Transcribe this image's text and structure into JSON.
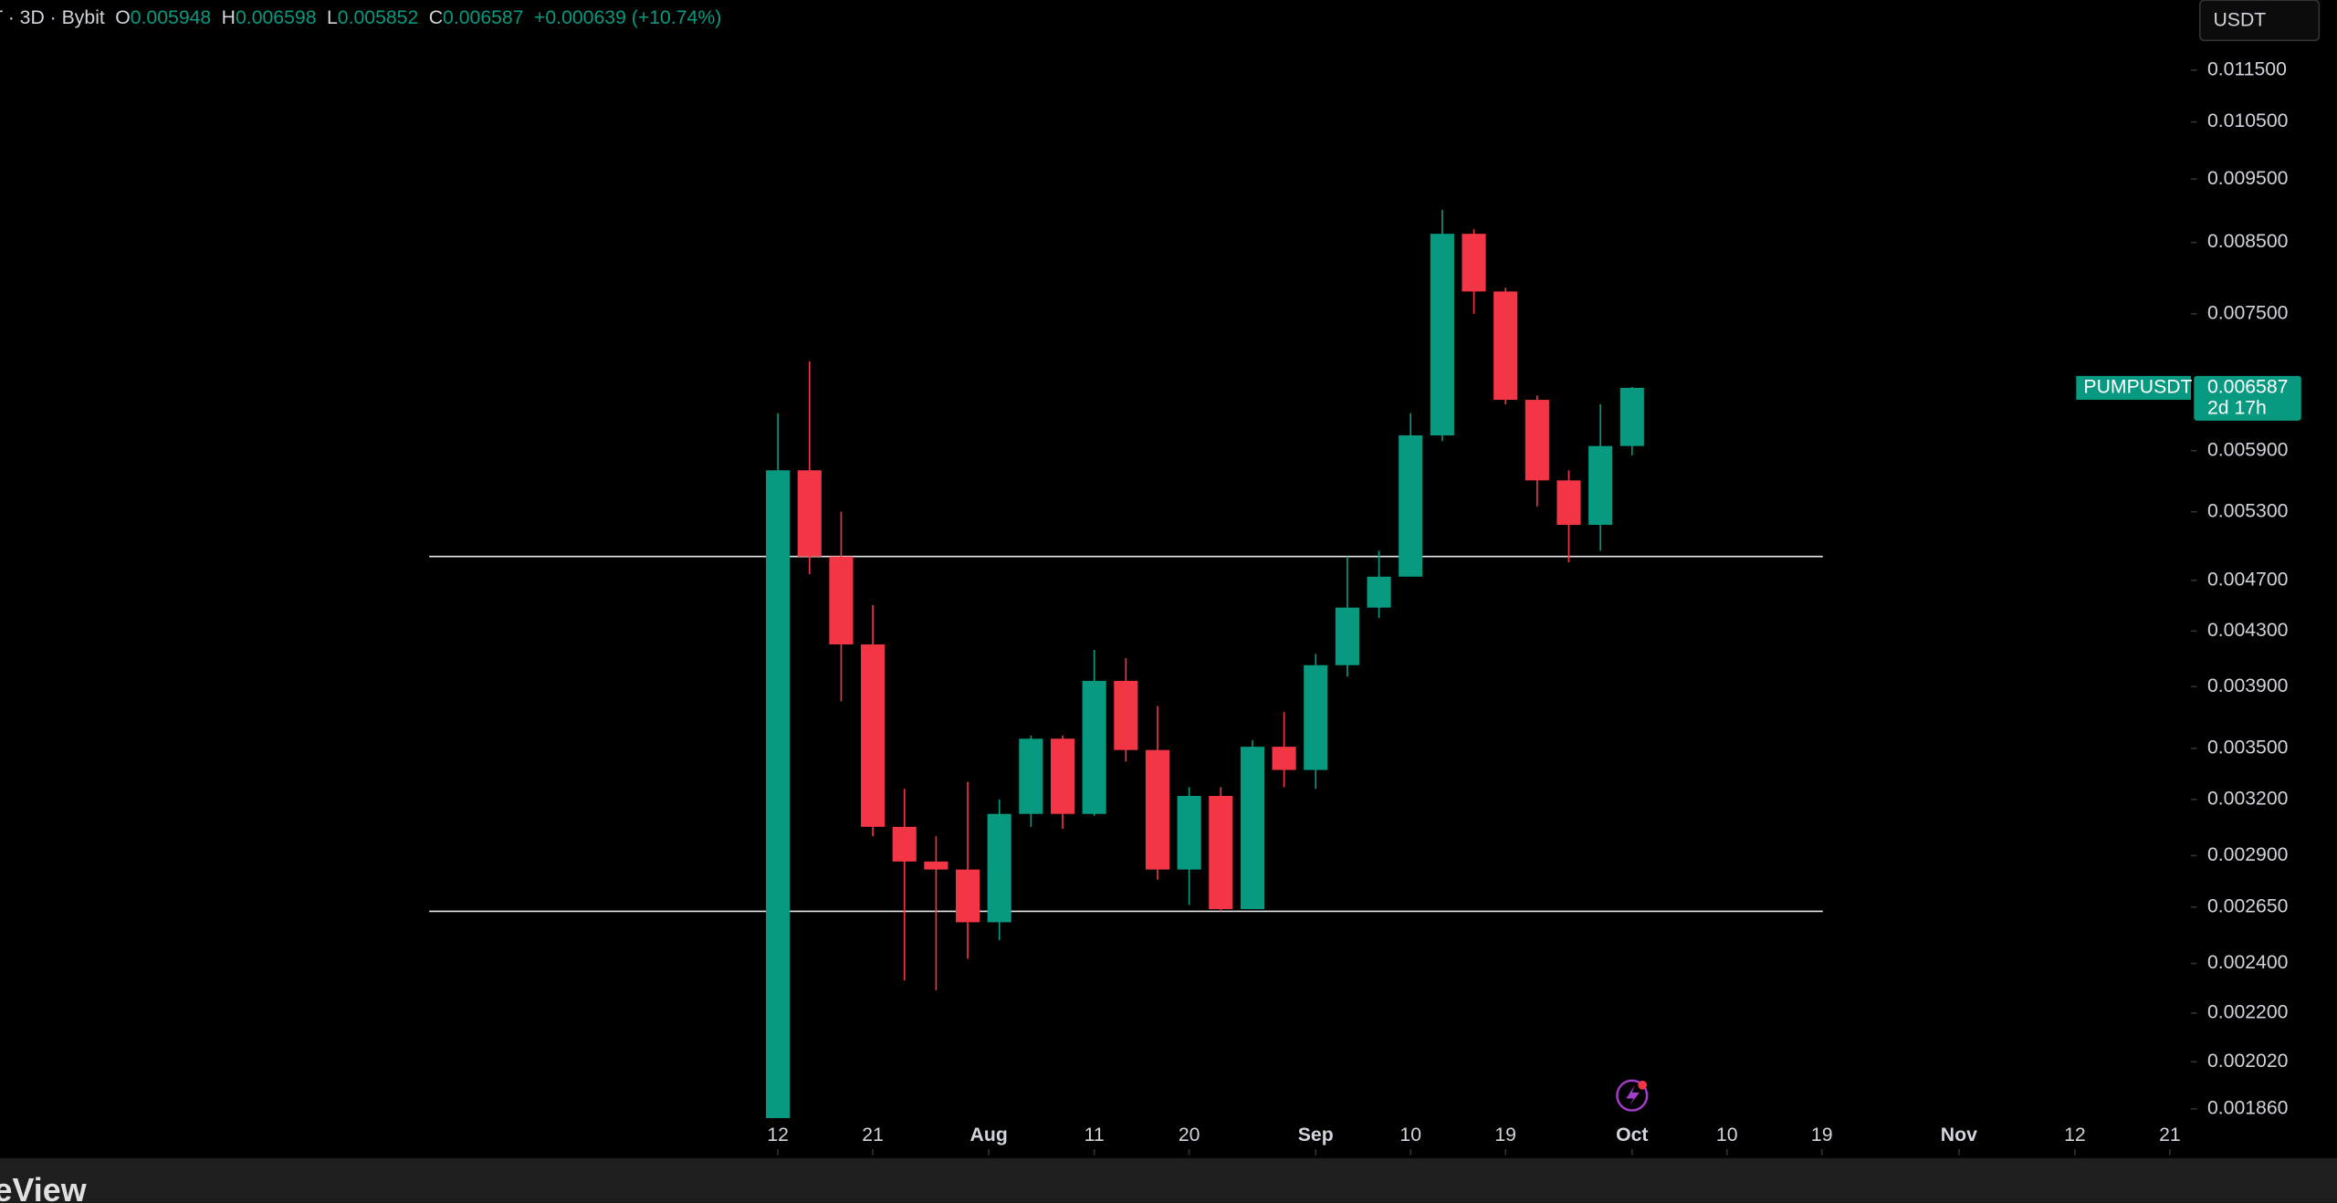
{
  "header": {
    "info": "T · 3D · Bybit",
    "items": [
      {
        "key": "O",
        "value": "0.005948"
      },
      {
        "key": "H",
        "value": "0.006598"
      },
      {
        "key": "L",
        "value": "0.005852"
      },
      {
        "key": "C",
        "value": "0.006587"
      }
    ],
    "change": "+0.000639 (+10.74%)",
    "currency": "USDT"
  },
  "chart_data": {
    "type": "candlestick",
    "symbol": "PUMPUSDT",
    "last_price_label": "0.006587",
    "countdown": "2d 17h",
    "up_color": "#089981",
    "down_color": "#f23645",
    "log_scale": true,
    "x": [
      0,
      3,
      6,
      9,
      12,
      15,
      18,
      21,
      24,
      27,
      30,
      33,
      36,
      39,
      42,
      45,
      48,
      51,
      54,
      57,
      60,
      63,
      66,
      69,
      72,
      75,
      78,
      81
    ],
    "open": [
      0.00183,
      0.0057,
      0.0049,
      0.0042,
      0.00305,
      0.00287,
      0.00283,
      0.00258,
      0.00312,
      0.00356,
      0.00312,
      0.00394,
      0.00349,
      0.00283,
      0.00322,
      0.00264,
      0.00351,
      0.00337,
      0.00405,
      0.00448,
      0.00473,
      0.00606,
      0.00863,
      0.0078,
      0.00645,
      0.0056,
      0.00518,
      0.005948
    ],
    "high": [
      0.0063,
      0.0069,
      0.0053,
      0.0045,
      0.00326,
      0.003,
      0.0033,
      0.0032,
      0.00358,
      0.00358,
      0.00416,
      0.0041,
      0.00377,
      0.00327,
      0.00327,
      0.00355,
      0.00373,
      0.00413,
      0.0049,
      0.00495,
      0.0063,
      0.009,
      0.0087,
      0.00785,
      0.0065,
      0.0057,
      0.0064,
      0.006598
    ],
    "low": [
      0.00183,
      0.00475,
      0.0038,
      0.003,
      0.00233,
      0.00229,
      0.00242,
      0.0025,
      0.00305,
      0.00304,
      0.00311,
      0.00342,
      0.00278,
      0.00266,
      0.00263,
      0.00264,
      0.00327,
      0.00326,
      0.00397,
      0.0044,
      0.00473,
      0.006,
      0.0075,
      0.0064,
      0.00535,
      0.00485,
      0.00495,
      0.005852
    ],
    "close": [
      0.0057,
      0.0049,
      0.0042,
      0.00305,
      0.00287,
      0.00283,
      0.00258,
      0.00312,
      0.00356,
      0.00312,
      0.00394,
      0.00349,
      0.00283,
      0.00322,
      0.00264,
      0.00351,
      0.00337,
      0.00405,
      0.00448,
      0.00473,
      0.00606,
      0.00863,
      0.0078,
      0.00645,
      0.0056,
      0.00518,
      0.005948,
      0.006587
    ],
    "hlines": [
      0.0049,
      0.00263
    ],
    "xlim": [
      -73.77,
      134
    ],
    "xticks": [
      {
        "value": 0,
        "label": "12"
      },
      {
        "value": 9,
        "label": "21"
      },
      {
        "value": 20,
        "label": "Aug"
      },
      {
        "value": 30,
        "label": "11"
      },
      {
        "value": 39,
        "label": "20"
      },
      {
        "value": 51,
        "label": "Sep"
      },
      {
        "value": 60,
        "label": "10"
      },
      {
        "value": 69,
        "label": "19"
      },
      {
        "value": 81,
        "label": "Oct"
      },
      {
        "value": 90,
        "label": "10"
      },
      {
        "value": 99,
        "label": "19"
      },
      {
        "value": 112,
        "label": "Nov"
      },
      {
        "value": 123,
        "label": "12"
      },
      {
        "value": 132,
        "label": "21"
      }
    ],
    "ylim": [
      0.001715,
      0.013
    ],
    "yticks": [
      {
        "value": 0.0115,
        "label": "0.011500"
      },
      {
        "value": 0.0105,
        "label": "0.010500"
      },
      {
        "value": 0.0095,
        "label": "0.009500"
      },
      {
        "value": 0.0085,
        "label": "0.008500"
      },
      {
        "value": 0.0075,
        "label": "0.007500"
      },
      {
        "value": 0.0059,
        "label": "0.005900"
      },
      {
        "value": 0.0053,
        "label": "0.005300"
      },
      {
        "value": 0.0047,
        "label": "0.004700"
      },
      {
        "value": 0.0043,
        "label": "0.004300"
      },
      {
        "value": 0.0039,
        "label": "0.003900"
      },
      {
        "value": 0.0035,
        "label": "0.003500"
      },
      {
        "value": 0.0032,
        "label": "0.003200"
      },
      {
        "value": 0.0029,
        "label": "0.002900"
      },
      {
        "value": 0.00265,
        "label": "0.002650"
      },
      {
        "value": 0.0024,
        "label": "0.002400"
      },
      {
        "value": 0.0022,
        "label": "0.002200"
      },
      {
        "value": 0.00202,
        "label": "0.002020"
      },
      {
        "value": 0.00186,
        "label": "0.001860"
      }
    ]
  },
  "footer": {
    "brand": "eView"
  }
}
